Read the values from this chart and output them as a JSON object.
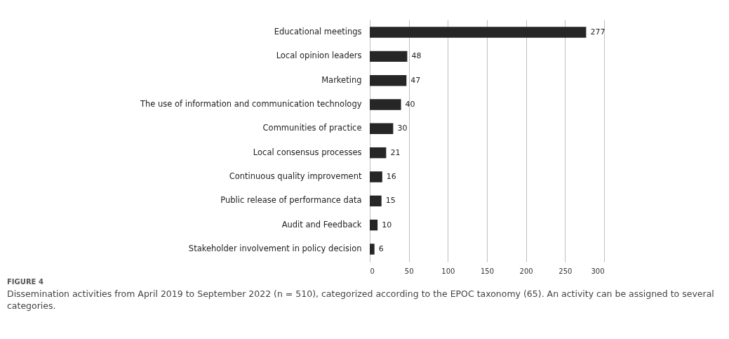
{
  "chart_data": {
    "type": "bar",
    "orientation": "horizontal",
    "categories": [
      "Educational meetings",
      "Local opinion leaders",
      "Marketing",
      "The use of information and communication technology",
      "Communities of practice",
      "Local consensus processes",
      "Continuous quality improvement",
      "Public release of performance data",
      "Audit and Feedback",
      "Stakeholder involvement in policy decision"
    ],
    "values": [
      277,
      48,
      47,
      40,
      30,
      21,
      16,
      15,
      10,
      6
    ],
    "color": "#262626",
    "xlim": [
      0,
      300
    ],
    "xticks": [
      0,
      50,
      100,
      150,
      200,
      250,
      300
    ],
    "grid": "x",
    "data_labels": true,
    "annotations": [
      "FIGURE 4",
      "Dissemination activities from April 2019 to September 2022 (n = 510), categorized according to the EPOC taxonomy (65). An activity can be assigned to several categories."
    ]
  }
}
